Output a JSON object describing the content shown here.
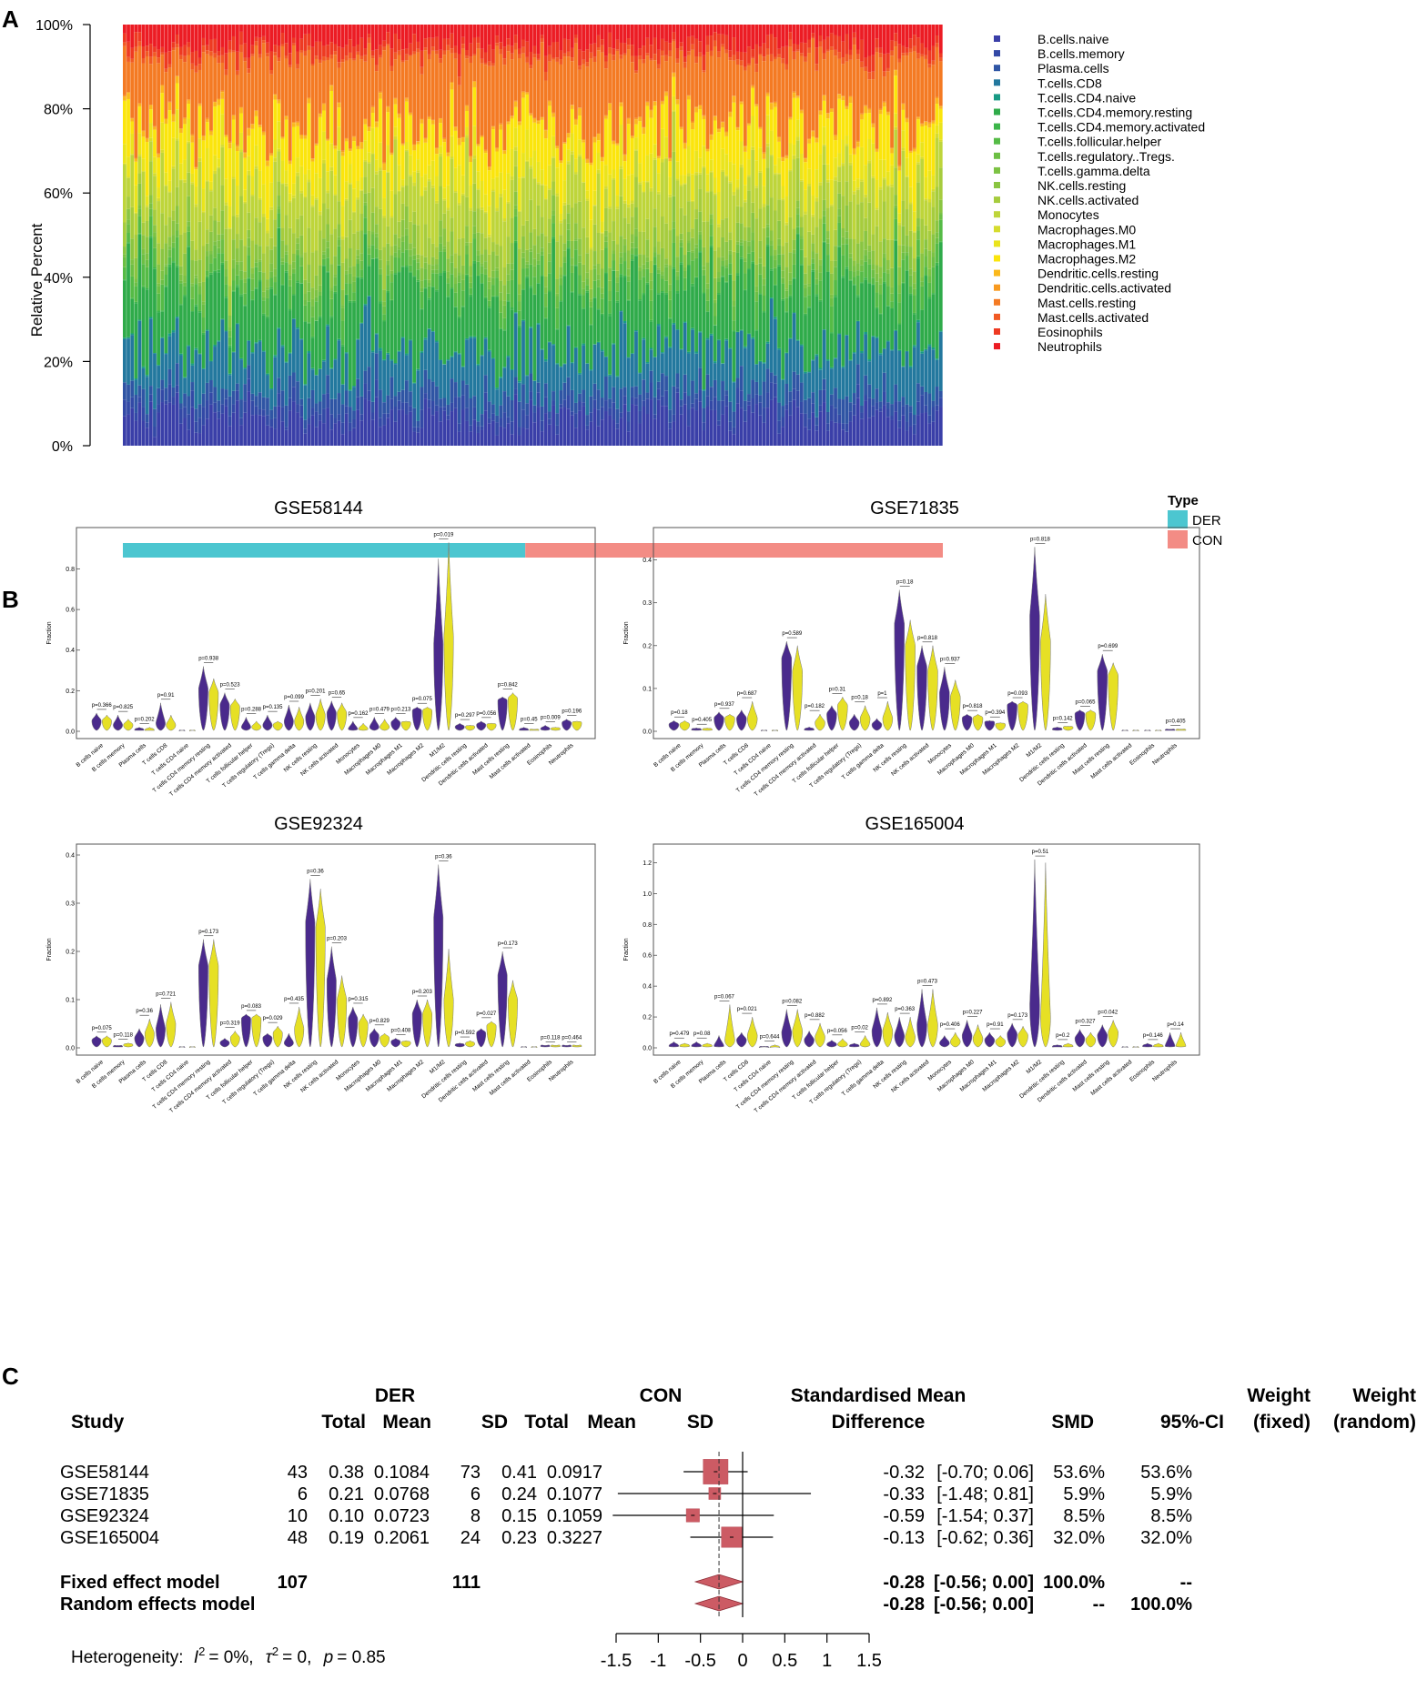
{
  "panel_letters": [
    "A",
    "B",
    "C"
  ],
  "colors": {
    "der": "#4cc6d0",
    "con": "#f38c85",
    "violin_der": "#4a2a8c",
    "violin_con": "#e6e025",
    "forest_box": "#cc5b64",
    "forest_diamond": "#cc5b64"
  },
  "chart_data": [
    {
      "type": "bar",
      "subtype": "stacked-100",
      "ylabel": "Relative Percent",
      "yticks": [
        "0%",
        "20%",
        "40%",
        "60%",
        "80%",
        "100%"
      ],
      "ylim": [
        0,
        100
      ],
      "n_samples": 218,
      "group_counts": {
        "DER": 107,
        "CON": 111
      },
      "legend_title": "Type",
      "type_legend": [
        "DER",
        "CON"
      ],
      "mean_composition_percent": [
        6.6,
        2.5,
        3.5,
        9.6,
        0.3,
        14.8,
        0.3,
        3.5,
        2.0,
        1.2,
        3.2,
        5.8,
        8.6,
        0.5,
        4.5,
        8.5,
        0.9,
        0.2,
        15.8,
        1.0,
        2.6,
        4.4
      ],
      "cells": [
        {
          "name": "B.cells.naive",
          "color": "#3a3fa8"
        },
        {
          "name": "B.cells.memory",
          "color": "#3349a6"
        },
        {
          "name": "Plasma.cells",
          "color": "#2f55a4"
        },
        {
          "name": "T.cells.CD8",
          "color": "#23789e"
        },
        {
          "name": "T.cells.CD4.naive",
          "color": "#189a84"
        },
        {
          "name": "T.cells.CD4.memory.resting",
          "color": "#2fab4a"
        },
        {
          "name": "T.cells.CD4.memory.activated",
          "color": "#3cb54a"
        },
        {
          "name": "T.cells.follicular.helper",
          "color": "#55bb46"
        },
        {
          "name": "T.cells.regulatory..Tregs.",
          "color": "#6cbf44"
        },
        {
          "name": "T.cells.gamma.delta",
          "color": "#7cc243"
        },
        {
          "name": "NK.cells.resting",
          "color": "#8ac541"
        },
        {
          "name": "NK.cells.activated",
          "color": "#a6cc3d"
        },
        {
          "name": "Monocytes",
          "color": "#bed53a"
        },
        {
          "name": "Macrophages.M0",
          "color": "#d6dc2e"
        },
        {
          "name": "Macrophages.M1",
          "color": "#eae41c"
        },
        {
          "name": "Macrophages.M2",
          "color": "#fbe50c"
        },
        {
          "name": "Dendritic.cells.resting",
          "color": "#fbb81b"
        },
        {
          "name": "Dendritic.cells.activated",
          "color": "#f89a1f"
        },
        {
          "name": "Mast.cells.resting",
          "color": "#f47a23"
        },
        {
          "name": "Mast.cells.activated",
          "color": "#f15a24"
        },
        {
          "name": "Eosinophils",
          "color": "#ee3a22"
        },
        {
          "name": "Neutrophils",
          "color": "#ec1c24"
        }
      ]
    },
    {
      "type": "violin",
      "title": "GSE58144",
      "ylabel": "Fraction",
      "yticks": [
        "0.0",
        "0.2",
        "0.4",
        "0.6",
        "0.8"
      ],
      "ylim": [
        0,
        0.95
      ],
      "categories": [
        "B cells naive",
        "B cells memory",
        "Plasma cells",
        "T cells CD8",
        "T cells CD4 naive",
        "T cells CD4 memory resting",
        "T cells CD4 memory activated",
        "T cells follicular helper",
        "T cells regulatory (Tregs)",
        "T cells gamma delta",
        "NK cells resting",
        "NK cells activated",
        "Monocytes",
        "Macrophages M0",
        "Macrophages M1",
        "Macrophages M2",
        "M1/M2",
        "Dendritic cells resting",
        "Dendritic cells activated",
        "Mast cells resting",
        "Mast cells activated",
        "Eosinophils",
        "Neutrophils"
      ],
      "pvalues": [
        "p=0.366",
        "p=0.825",
        "p=0.202",
        "p=0.91",
        "",
        "p=0.938",
        "p=0.523",
        "p=0.288",
        "p=0.135",
        "p=0.099",
        "p=0.201",
        "p=0.65",
        "p=0.162",
        "p=0.479",
        "p=0.213",
        "p=0.075",
        "p=0.019",
        "p=0.297",
        "p=0.056",
        "p=0.842",
        "p=0.45",
        "p=0.009",
        "p=0.196"
      ],
      "der_max": [
        0.09,
        0.08,
        0.02,
        0.14,
        0.005,
        0.32,
        0.19,
        0.07,
        0.08,
        0.13,
        0.14,
        0.15,
        0.05,
        0.07,
        0.07,
        0.12,
        0.85,
        0.04,
        0.05,
        0.17,
        0.02,
        0.03,
        0.06
      ],
      "con_max": [
        0.08,
        0.06,
        0.02,
        0.08,
        0.005,
        0.26,
        0.16,
        0.05,
        0.05,
        0.12,
        0.16,
        0.14,
        0.04,
        0.06,
        0.05,
        0.12,
        0.93,
        0.03,
        0.04,
        0.19,
        0.01,
        0.02,
        0.05
      ],
      "der_median": [
        0.05,
        0.03,
        0.005,
        0.04,
        0.0,
        0.21,
        0.13,
        0.02,
        0.03,
        0.05,
        0.07,
        0.09,
        0.01,
        0.02,
        0.04,
        0.1,
        0.43,
        0.02,
        0.03,
        0.15,
        0.005,
        0.01,
        0.04
      ],
      "con_median": [
        0.05,
        0.03,
        0.004,
        0.03,
        0.0,
        0.19,
        0.12,
        0.02,
        0.03,
        0.05,
        0.08,
        0.09,
        0.01,
        0.02,
        0.04,
        0.1,
        0.47,
        0.02,
        0.03,
        0.16,
        0.004,
        0.01,
        0.04
      ]
    },
    {
      "type": "violin",
      "title": "GSE71835",
      "ylabel": "Fraction",
      "yticks": [
        "0.0",
        "0.1",
        "0.2",
        "0.3",
        "0.4"
      ],
      "ylim": [
        0,
        0.45
      ],
      "categories": [
        "B cells naive",
        "B cells memory",
        "Plasma cells",
        "T cells CD8",
        "T cells CD4 naive",
        "T cells CD4 memory resting",
        "T cells CD4 memory activated",
        "T cells follicular helper",
        "T cells regulatory (Tregs)",
        "T cells gamma delta",
        "NK cells resting",
        "NK cells activated",
        "Monocytes",
        "Macrophages M0",
        "Macrophages M1",
        "Macrophages M2",
        "M1/M2",
        "Dendritic cells resting",
        "Dendritic cells activated",
        "Mast cells resting",
        "Mast cells activated",
        "Eosinophils",
        "Neutrophils"
      ],
      "pvalues": [
        "p=0.18",
        "p=0.405",
        "p=0.937",
        "p=0.687",
        "",
        "p=0.589",
        "p=0.182",
        "p=0.31",
        "p=0.18",
        "p=1",
        "p=0.18",
        "p=0.818",
        "p=0.937",
        "p=0.818",
        "p=0.394",
        "p=0.093",
        "p=0.818",
        "p=0.142",
        "p=0.065",
        "p=0.699",
        "",
        "",
        "p=0.405"
      ],
      "der_max": [
        0.025,
        0.008,
        0.045,
        0.05,
        0.002,
        0.21,
        0.01,
        0.06,
        0.04,
        0.03,
        0.33,
        0.2,
        0.15,
        0.04,
        0.025,
        0.07,
        0.43,
        0.01,
        0.05,
        0.18,
        0.002,
        0.002,
        0.005
      ],
      "con_max": [
        0.025,
        0.008,
        0.04,
        0.07,
        0.002,
        0.2,
        0.04,
        0.08,
        0.06,
        0.07,
        0.26,
        0.2,
        0.12,
        0.04,
        0.02,
        0.07,
        0.32,
        0.012,
        0.05,
        0.16,
        0.002,
        0.002,
        0.005
      ],
      "der_median": [
        0.015,
        0.003,
        0.03,
        0.03,
        0.0,
        0.17,
        0.003,
        0.04,
        0.02,
        0.015,
        0.25,
        0.15,
        0.09,
        0.03,
        0.02,
        0.06,
        0.27,
        0.004,
        0.04,
        0.14,
        0.0,
        0.0,
        0.002
      ],
      "con_median": [
        0.015,
        0.003,
        0.03,
        0.03,
        0.0,
        0.14,
        0.02,
        0.06,
        0.03,
        0.03,
        0.2,
        0.14,
        0.08,
        0.03,
        0.015,
        0.06,
        0.21,
        0.008,
        0.04,
        0.13,
        0.0,
        0.0,
        0.002
      ]
    },
    {
      "type": "violin",
      "title": "GSE92324",
      "ylabel": "Fraction",
      "yticks": [
        "0.0",
        "0.1",
        "0.2",
        "0.3",
        "0.4"
      ],
      "ylim": [
        0,
        0.4
      ],
      "categories": [
        "B cells naive",
        "B cells memory",
        "Plasma cells",
        "T cells CD8",
        "T cells CD4 naive",
        "T cells CD4 memory resting",
        "T cells CD4 memory activated",
        "T cells follicular helper",
        "T cells regulatory (Tregs)",
        "T cells gamma delta",
        "NK cells resting",
        "NK cells activated",
        "Monocytes",
        "Macrophages M0",
        "Macrophages M1",
        "Macrophages M2",
        "M1/M2",
        "Dendritic cells resting",
        "Dendritic cells activated",
        "Mast cells resting",
        "Mast cells activated",
        "Eosinophils",
        "Neutrophils"
      ],
      "pvalues": [
        "p=0.075",
        "p=0.118",
        "p=0.36",
        "p=0.721",
        "",
        "p=0.173",
        "p=0.319",
        "p=0.083",
        "p=0.029",
        "p=0.435",
        "p=0.36",
        "p=0.203",
        "p=0.315",
        "p=0.829",
        "p=0.408",
        "p=0.203",
        "p=0.36",
        "p=0.592",
        "p=0.027",
        "p=0.173",
        "",
        "p=0.118",
        "p=0.464"
      ],
      "der_max": [
        0.025,
        0.005,
        0.04,
        0.09,
        0.002,
        0.225,
        0.02,
        0.07,
        0.03,
        0.03,
        0.35,
        0.21,
        0.085,
        0.04,
        0.02,
        0.1,
        0.38,
        0.01,
        0.04,
        0.2,
        0.002,
        0.005,
        0.005
      ],
      "con_max": [
        0.025,
        0.01,
        0.06,
        0.095,
        0.002,
        0.225,
        0.035,
        0.07,
        0.045,
        0.085,
        0.33,
        0.15,
        0.07,
        0.03,
        0.015,
        0.1,
        0.205,
        0.015,
        0.055,
        0.14,
        0.002,
        0.005,
        0.005
      ],
      "der_median": [
        0.015,
        0.002,
        0.02,
        0.04,
        0.0,
        0.17,
        0.01,
        0.06,
        0.02,
        0.01,
        0.26,
        0.14,
        0.06,
        0.025,
        0.012,
        0.07,
        0.27,
        0.005,
        0.03,
        0.15,
        0.0,
        0.003,
        0.003
      ],
      "con_median": [
        0.015,
        0.005,
        0.03,
        0.05,
        0.0,
        0.17,
        0.02,
        0.06,
        0.03,
        0.04,
        0.25,
        0.1,
        0.05,
        0.02,
        0.01,
        0.07,
        0.1,
        0.008,
        0.045,
        0.1,
        0.0,
        0.003,
        0.003
      ]
    },
    {
      "type": "violin",
      "title": "GSE165004",
      "ylabel": "Fraction",
      "yticks": [
        "0.0",
        "0.2",
        "0.4",
        "0.6",
        "0.8",
        "1.0",
        "1.2"
      ],
      "ylim": [
        0,
        1.25
      ],
      "categories": [
        "B cells naive",
        "B cells memory",
        "Plasma cells",
        "T cells CD8",
        "T cells CD4 naive",
        "T cells CD4 memory resting",
        "T cells CD4 memory activated",
        "T cells follicular helper",
        "T cells regulatory (Tregs)",
        "T cells gamma delta",
        "NK cells resting",
        "NK cells activated",
        "Monocytes",
        "Macrophages M0",
        "Macrophages M1",
        "Macrophages M2",
        "M1/M2",
        "Dendritic cells resting",
        "Dendritic cells activated",
        "Mast cells resting",
        "Mast cells activated",
        "Eosinophils",
        "Neutrophils"
      ],
      "pvalues": [
        "p=0.479",
        "p=0.08",
        "p=0.067",
        "p=0.021",
        "p=0.644",
        "p=0.082",
        "p=0.882",
        "p=0.056",
        "p=0.02",
        "p=0.892",
        "p=0.363",
        "p=0.473",
        "p=0.406",
        "p=0.227",
        "p=0.91",
        "p=0.173",
        "p=0.51",
        "p=0.2",
        "p=0.327",
        "p=0.042",
        "",
        "p=0.146",
        "p=0.14"
      ],
      "der_max": [
        0.04,
        0.04,
        0.08,
        0.1,
        0.01,
        0.25,
        0.11,
        0.05,
        0.03,
        0.26,
        0.2,
        0.38,
        0.08,
        0.18,
        0.1,
        0.16,
        1.22,
        0.02,
        0.12,
        0.15,
        0.005,
        0.03,
        0.1
      ],
      "con_max": [
        0.03,
        0.03,
        0.28,
        0.2,
        0.02,
        0.25,
        0.16,
        0.06,
        0.08,
        0.23,
        0.2,
        0.38,
        0.1,
        0.15,
        0.08,
        0.14,
        1.2,
        0.03,
        0.1,
        0.18,
        0.005,
        0.03,
        0.1
      ],
      "der_median": [
        0.01,
        0.01,
        0.01,
        0.05,
        0.0,
        0.1,
        0.05,
        0.02,
        0.01,
        0.11,
        0.08,
        0.15,
        0.03,
        0.08,
        0.05,
        0.09,
        0.28,
        0.005,
        0.06,
        0.08,
        0.0,
        0.008,
        0.01
      ],
      "con_median": [
        0.01,
        0.01,
        0.05,
        0.08,
        0.0,
        0.11,
        0.07,
        0.02,
        0.02,
        0.11,
        0.07,
        0.15,
        0.04,
        0.06,
        0.04,
        0.08,
        0.2,
        0.008,
        0.05,
        0.1,
        0.0,
        0.008,
        0.01
      ]
    },
    {
      "type": "table",
      "subtype": "forest",
      "headers": {
        "der_group": "DER",
        "con_group": "CON",
        "study": "Study",
        "total": "Total",
        "mean": "Mean",
        "sd": "SD",
        "smd_line1": "Standardised Mean",
        "smd_line2": "Difference",
        "smd": "SMD",
        "ci": "95%-CI",
        "wfixed_line1": "Weight",
        "wfixed_line2": "(fixed)",
        "wrandom_line1": "Weight",
        "wrandom_line2": "(random)"
      },
      "studies": [
        {
          "study": "GSE58144",
          "der_total": "43",
          "der_mean": "0.38",
          "der_sd": "0.1084",
          "con_total": "73",
          "con_mean": "0.41",
          "con_sd": "0.0917",
          "smd_text": "-0.32",
          "ci_text": "[-0.70; 0.06]",
          "w_fixed": "53.6%",
          "w_random": "53.6%",
          "smd": -0.32,
          "lo": -0.7,
          "hi": 0.06,
          "weight": 53.6
        },
        {
          "study": "GSE71835",
          "der_total": "6",
          "der_mean": "0.21",
          "der_sd": "0.0768",
          "con_total": "6",
          "con_mean": "0.24",
          "con_sd": "0.1077",
          "smd_text": "-0.33",
          "ci_text": "[-1.48; 0.81]",
          "w_fixed": "5.9%",
          "w_random": "5.9%",
          "smd": -0.33,
          "lo": -1.48,
          "hi": 0.81,
          "weight": 5.9
        },
        {
          "study": "GSE92324",
          "der_total": "10",
          "der_mean": "0.10",
          "der_sd": "0.0723",
          "con_total": "8",
          "con_mean": "0.15",
          "con_sd": "0.1059",
          "smd_text": "-0.59",
          "ci_text": "[-1.54; 0.37]",
          "w_fixed": "8.5%",
          "w_random": "8.5%",
          "smd": -0.59,
          "lo": -1.54,
          "hi": 0.37,
          "weight": 8.5
        },
        {
          "study": "GSE165004",
          "der_total": "48",
          "der_mean": "0.19",
          "der_sd": "0.2061",
          "con_total": "24",
          "con_mean": "0.23",
          "con_sd": "0.3227",
          "smd_text": "-0.13",
          "ci_text": "[-0.62; 0.36]",
          "w_fixed": "32.0%",
          "w_random": "32.0%",
          "smd": -0.13,
          "lo": -0.62,
          "hi": 0.36,
          "weight": 32.0
        }
      ],
      "fixed": {
        "label": "Fixed effect model",
        "der_total": "107",
        "con_total": "111",
        "smd_text": "-0.28",
        "ci_text": "[-0.56; 0.00]",
        "w_fixed": "100.0%",
        "w_random": "--",
        "smd": -0.28,
        "lo": -0.56,
        "hi": 0.0
      },
      "random": {
        "label": "Random effects model",
        "smd_text": "-0.28",
        "ci_text": "[-0.56; 0.00]",
        "w_fixed": "--",
        "w_random": "100.0%",
        "smd": -0.28,
        "lo": -0.56,
        "hi": 0.0
      },
      "heterogeneity": {
        "label": "Heterogeneity:",
        "i2_symbol": "I",
        "i2_sup": "2",
        "i2_value": "= 0%,",
        "tau_symbol": "τ",
        "tau_sup": "2",
        "tau_value": "= 0,",
        "p_symbol": "p",
        "p_value": "= 0.85"
      },
      "xticks": [
        "-1.5",
        "-1",
        "-0.5",
        "0",
        "0.5",
        "1",
        "1.5"
      ],
      "xlim": [
        -1.5,
        1.5
      ]
    }
  ]
}
